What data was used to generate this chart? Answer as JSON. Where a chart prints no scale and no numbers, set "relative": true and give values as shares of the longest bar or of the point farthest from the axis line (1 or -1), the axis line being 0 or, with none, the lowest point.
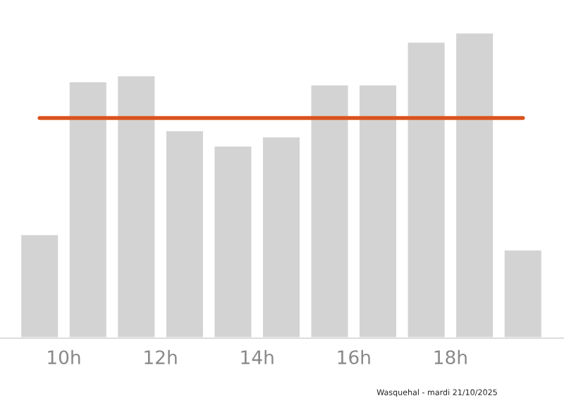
{
  "chart_data": {
    "type": "bar",
    "relative": true,
    "x": [
      9.5,
      10.5,
      11.5,
      12.5,
      13.5,
      14.5,
      15.5,
      16.5,
      17.5,
      18.5,
      19.5
    ],
    "xlim": [
      8.68,
      20.35
    ],
    "xticks": [
      {
        "value": 10,
        "label": "10h"
      },
      {
        "value": 12,
        "label": "12h"
      },
      {
        "value": 14,
        "label": "14h"
      },
      {
        "value": 16,
        "label": "16h"
      },
      {
        "value": 18,
        "label": "18h"
      }
    ],
    "tick_labels": "x",
    "series": [
      {
        "color": "#d3d3d3",
        "values": [
          0.34,
          0.84,
          0.86,
          0.68,
          0.63,
          0.66,
          0.83,
          0.83,
          0.97,
          1,
          0.29
        ]
      },
      {
        "type": "line",
        "color": "#d9531e",
        "x": [
          9.5,
          19.5
        ],
        "values": [
          0.72,
          0.72
        ]
      }
    ],
    "grid": false,
    "legend": false,
    "annotations": [
      "Wasquehal - mardi 21/10/2025"
    ]
  }
}
